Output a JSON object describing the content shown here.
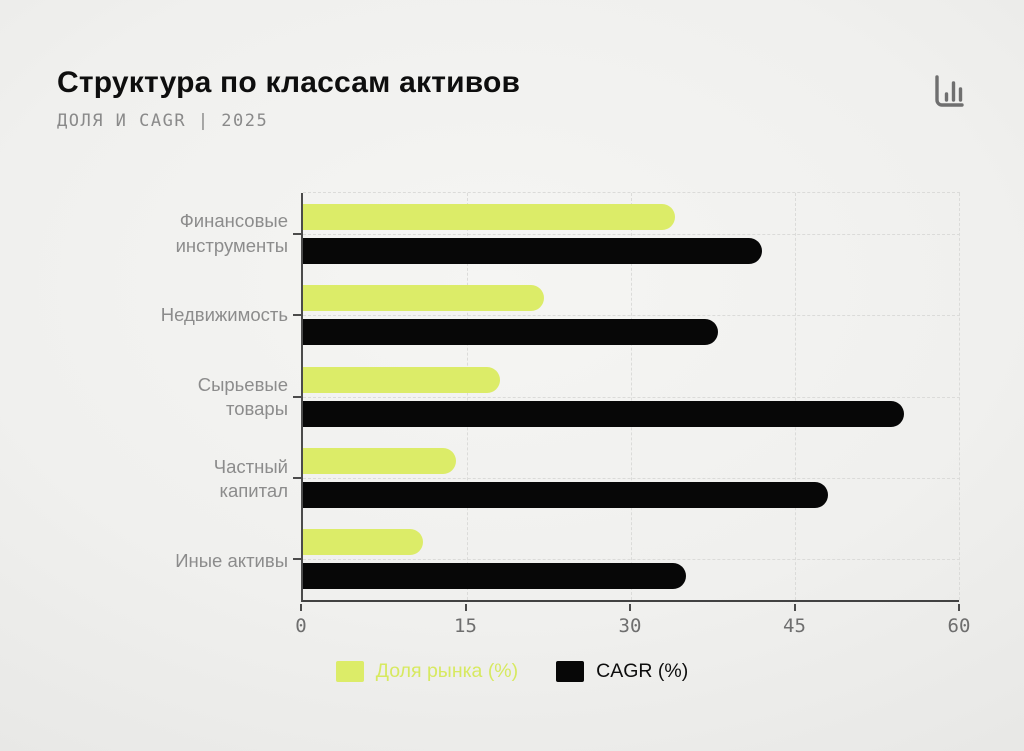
{
  "header": {
    "title": "Структура по классам активов",
    "subtitle": "ДОЛЯ И CAGR | 2025"
  },
  "icons": {
    "corner": "bar-chart-icon"
  },
  "colors": {
    "share": "#dcec68",
    "cagr": "#070707",
    "axis": "#4b4b4b",
    "grid": "#dbdbd9",
    "category_label": "#8c8c8c",
    "tick_label": "#6e6e6e",
    "icon": "#6f6f6f"
  },
  "chart_data": {
    "type": "bar",
    "orientation": "horizontal",
    "title": "Структура по классам активов",
    "subtitle": "ДОЛЯ И CAGR | 2025",
    "categories": [
      "Финансовые инструменты",
      "Недвижимость",
      "Сырьевые товары",
      "Частный капитал",
      "Иные активы"
    ],
    "category_lines": [
      [
        "Финансовые",
        "инструменты"
      ],
      [
        "Недвижимость"
      ],
      [
        "Сырьевые",
        "товары"
      ],
      [
        "Частный",
        "капитал"
      ],
      [
        "Иные активы"
      ]
    ],
    "series": [
      {
        "name": "Доля рынка (%)",
        "color": "#dcec68",
        "values": [
          34,
          22,
          18,
          14,
          11
        ]
      },
      {
        "name": "CAGR (%)",
        "color": "#070707",
        "values": [
          42,
          38,
          55,
          48,
          35
        ]
      }
    ],
    "xlim": [
      0,
      60
    ],
    "xticks": [
      0,
      15,
      30,
      45,
      60
    ],
    "grid": "dashed",
    "legend_position": "bottom"
  },
  "legend": [
    {
      "label": "Доля рынка (%)",
      "color": "#dcec68",
      "text_color": "#d7e960"
    },
    {
      "label": "CAGR (%)",
      "color": "#070707",
      "text_color": "#0d0d0d"
    }
  ]
}
